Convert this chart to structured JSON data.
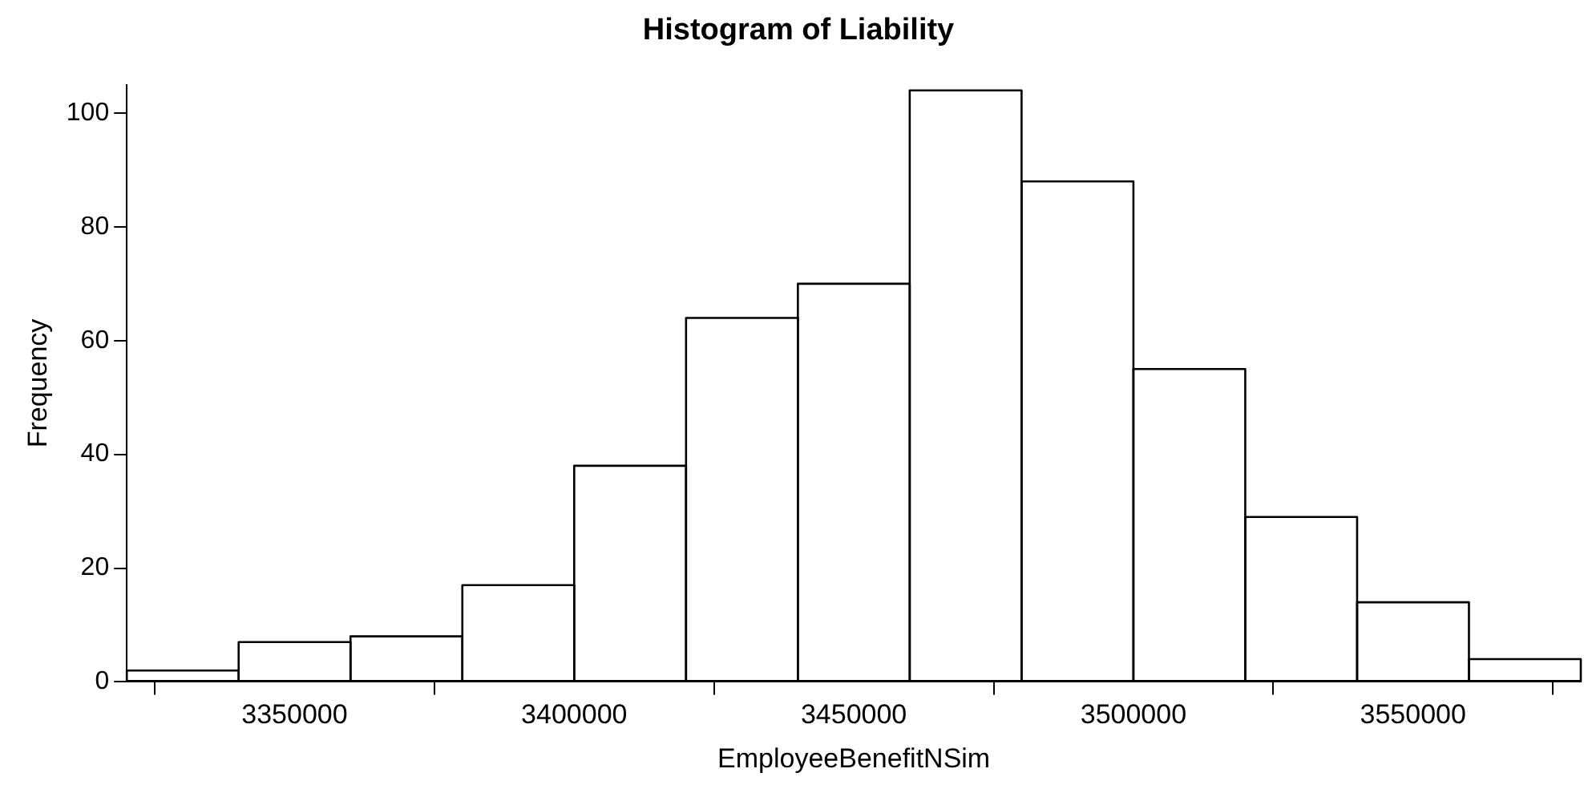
{
  "chart_data": {
    "type": "histogram",
    "title": "Histogram of Liability",
    "xlabel": "EmployeeBenefitNSim",
    "ylabel": "Frequency",
    "bins": [
      3320000,
      3340000,
      3360000,
      3380000,
      3400000,
      3420000,
      3440000,
      3460000,
      3480000,
      3500000,
      3520000,
      3540000,
      3560000,
      3580000
    ],
    "values": [
      2,
      7,
      8,
      17,
      38,
      64,
      70,
      104,
      88,
      55,
      29,
      14,
      4
    ],
    "color": "#000000",
    "xlim": [
      3320000,
      3580000
    ],
    "xticks": [
      3350000,
      3400000,
      3450000,
      3500000,
      3550000
    ],
    "ylim": [
      0,
      105
    ],
    "yticks": [
      0,
      20,
      40,
      60,
      80,
      100
    ],
    "grid": false,
    "legend": false
  }
}
